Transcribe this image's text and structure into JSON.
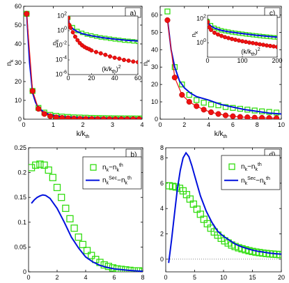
{
  "colors": {
    "green": "#33dd11",
    "blue": "#0010dd",
    "red": "#ee1111",
    "dots": "#888888"
  },
  "chart_data": [
    {
      "id": "a",
      "panel_label": "a)",
      "type": "line",
      "xlabel": "k/k_th",
      "ylabel": "n_k",
      "xlim": [
        0,
        4
      ],
      "ylim": [
        0,
        60
      ],
      "xticks": [
        "0",
        "1",
        "2",
        "3",
        "4"
      ],
      "yticks": [
        "0",
        "10",
        "20",
        "30",
        "40",
        "50",
        "60"
      ],
      "series": [
        {
          "marker": "square",
          "color": "green",
          "x": [
            0.1,
            0.3,
            0.5,
            0.7,
            0.9,
            1.1,
            1.3,
            1.5,
            1.7,
            1.9,
            2.1,
            2.3,
            2.5,
            2.7,
            2.9,
            3.1,
            3.3,
            3.5,
            3.7,
            3.9
          ],
          "y": [
            56,
            15,
            6,
            3.5,
            2.3,
            1.8,
            1.4,
            1.2,
            1.0,
            0.9,
            0.8,
            0.7,
            0.65,
            0.6,
            0.55,
            0.5,
            0.47,
            0.44,
            0.42,
            0.4
          ]
        },
        {
          "marker": "line",
          "color": "blue",
          "x": [
            0.1,
            0.2,
            0.3,
            0.4,
            0.5,
            0.7,
            0.9,
            1.2,
            1.5,
            2,
            2.5,
            3,
            3.5,
            4
          ],
          "y": [
            56,
            30,
            14,
            9,
            6,
            3.5,
            2.3,
            1.5,
            1.1,
            0.8,
            0.6,
            0.5,
            0.45,
            0.4
          ]
        },
        {
          "marker": "dot",
          "color": "red",
          "x": [
            0.1,
            0.3,
            0.5,
            0.7,
            0.9,
            1.1,
            1.3,
            1.5,
            1.7,
            1.9,
            2.1,
            2.3,
            2.5,
            2.7,
            2.9,
            3.1,
            3.3,
            3.5,
            3.7,
            3.9
          ],
          "y": [
            56,
            15,
            5.5,
            2.8,
            1.6,
            1.0,
            0.7,
            0.5,
            0.35,
            0.25,
            0.18,
            0.13,
            0.1,
            0.08,
            0.06,
            0.05,
            0.04,
            0.03,
            0.02,
            0.02
          ]
        }
      ],
      "inset": {
        "xlabel": "(k/k_th)^2",
        "ylabel": "n_k",
        "xlim": [
          0,
          60
        ],
        "log10_ylim": [
          -6,
          2
        ],
        "xticks": [
          "0",
          "20",
          "40",
          "60"
        ],
        "yticks": [
          "10^2",
          "10^0",
          "10^-2",
          "10^-4",
          "10^-6"
        ],
        "series": [
          {
            "marker": "square",
            "color": "green",
            "x": [
              0.01,
              4,
              8,
              12,
              16,
              20,
              24,
              28,
              32,
              36,
              40,
              44,
              48,
              52,
              56,
              60
            ],
            "y": [
              56,
              3,
              0.9,
              0.5,
              0.3,
              0.22,
              0.16,
              0.12,
              0.1,
              0.08,
              0.065,
              0.055,
              0.045,
              0.04,
              0.035,
              0.03
            ]
          },
          {
            "marker": "line",
            "color": "blue",
            "x": [
              0.01,
              1,
              2,
              4,
              8,
              12,
              16,
              20,
              30,
              40,
              50,
              60
            ],
            "y": [
              56,
              8,
              4,
              1.8,
              0.7,
              0.4,
              0.27,
              0.2,
              0.11,
              0.07,
              0.05,
              0.04
            ]
          },
          {
            "marker": "dot",
            "color": "red",
            "x": [
              0.01,
              1,
              2,
              4,
              6,
              8,
              10,
              12,
              14,
              16,
              18,
              20,
              24,
              28,
              32,
              36,
              40,
              44,
              48,
              52,
              56,
              60
            ],
            "y": [
              56,
              6,
              2.5,
              0.6,
              0.15,
              0.05,
              0.02,
              0.01,
              0.006,
              0.004,
              0.003,
              0.002,
              0.0012,
              0.0008,
              0.0005,
              0.0003,
              0.0002,
              0.00015,
              0.0001,
              8e-05,
              6e-05,
              5e-05
            ]
          }
        ]
      }
    },
    {
      "id": "c",
      "panel_label": "c)",
      "type": "line",
      "xlabel": "k/k_th",
      "ylabel": "n_k",
      "xlim": [
        0,
        10
      ],
      "ylim": [
        0,
        65
      ],
      "xticks": [
        "0",
        "2",
        "4",
        "6",
        "8",
        "10"
      ],
      "yticks": [
        "0",
        "10",
        "20",
        "30",
        "40",
        "50",
        "60"
      ],
      "series": [
        {
          "marker": "square",
          "color": "green",
          "x": [
            0.6,
            1.2,
            1.8,
            2.4,
            3.0,
            3.6,
            4.2,
            4.8,
            5.4,
            6.0,
            6.6,
            7.2,
            7.8,
            8.4,
            9.0,
            9.6
          ],
          "y": [
            62,
            30,
            20,
            14,
            11,
            9.5,
            8.5,
            8,
            7,
            6.5,
            6,
            5.5,
            5,
            4.5,
            4.2,
            3.8
          ]
        },
        {
          "marker": "line",
          "color": "blue",
          "x": [
            0.6,
            0.9,
            1.2,
            1.6,
            2,
            2.5,
            3,
            3.5,
            4,
            5,
            6,
            7,
            8,
            9,
            10
          ],
          "y": [
            58,
            40,
            30,
            22,
            18,
            15,
            13,
            12,
            11,
            8.5,
            7,
            5.5,
            4.5,
            3.5,
            3
          ]
        },
        {
          "marker": "dot",
          "color": "red",
          "x": [
            0.6,
            1.2,
            1.8,
            2.4,
            3.0,
            3.6,
            4.2,
            4.8,
            5.4,
            6.0,
            6.6,
            7.2,
            7.8,
            8.4,
            9.0,
            9.6
          ],
          "y": [
            57,
            24,
            14,
            10,
            7.5,
            5.5,
            4,
            3,
            2.2,
            1.7,
            1.3,
            1.1,
            0.9,
            0.8,
            0.7,
            0.6
          ]
        }
      ],
      "inset": {
        "xlabel": "(k/k_th)^2",
        "ylabel": "n_k",
        "xlim": [
          0,
          200
        ],
        "log10_ylim": [
          -1.2,
          2.3
        ],
        "xticks": [
          "0",
          "100",
          "200"
        ],
        "yticks": [
          "10^2",
          "10^0"
        ],
        "series": [
          {
            "marker": "square",
            "color": "green",
            "x": [
              0.36,
              10,
              20,
              30,
              40,
              50,
              60,
              70,
              80,
              90,
              100,
              110,
              120,
              130,
              140,
              150,
              160,
              170,
              180,
              190,
              200
            ],
            "y": [
              62,
              30,
              18,
              14,
              11,
              9.5,
              8.5,
              7.5,
              6.8,
              6.2,
              5.7,
              5.2,
              4.8,
              4.4,
              4.1,
              3.8,
              3.5,
              3.3,
              3.1,
              2.9,
              2.8
            ]
          },
          {
            "marker": "line",
            "color": "blue",
            "x": [
              0.36,
              5,
              10,
              20,
              40,
              60,
              80,
              100,
              120,
              140,
              160,
              180,
              200
            ],
            "y": [
              58,
              35,
              25,
              17,
              11,
              8.5,
              7,
              6,
              5,
              4.3,
              3.8,
              3.3,
              3
            ]
          },
          {
            "marker": "dot",
            "color": "red",
            "x": [
              0.36,
              5,
              10,
              20,
              30,
              40,
              50,
              60,
              70,
              80,
              90,
              100,
              110,
              120,
              130,
              140,
              150,
              160,
              170,
              180,
              190,
              200
            ],
            "y": [
              57,
              20,
              12,
              7,
              5,
              3.8,
              3,
              2.5,
              2.1,
              1.8,
              1.55,
              1.35,
              1.2,
              1.05,
              0.95,
              0.85,
              0.75,
              0.68,
              0.6,
              0.55,
              0.5,
              0.45
            ]
          }
        ]
      }
    },
    {
      "id": "b",
      "panel_label": "b)",
      "type": "line",
      "xlabel": "k/k_th",
      "ylabel": "",
      "xlim": [
        0,
        8
      ],
      "ylim": [
        0,
        0.25
      ],
      "xticks": [
        "0",
        "2",
        "4",
        "6",
        "8"
      ],
      "yticks": [
        "0",
        "0.05",
        "0.1",
        "0.15",
        "0.2",
        "0.25"
      ],
      "legend": {
        "placement": "top-right",
        "entries": [
          "n_k−n_k^th",
          "n_k^Sec−n_k^th"
        ]
      },
      "series": [
        {
          "name": "n_k−n_k^th",
          "marker": "square",
          "color": "green",
          "x": [
            0.2,
            0.5,
            0.8,
            1.1,
            1.4,
            1.7,
            2.0,
            2.3,
            2.6,
            2.9,
            3.2,
            3.5,
            3.8,
            4.1,
            4.4,
            4.7,
            5.0,
            5.3,
            5.6,
            5.9,
            6.2,
            6.5,
            6.8,
            7.1,
            7.4,
            7.7,
            8.0
          ],
          "y": [
            0.21,
            0.215,
            0.217,
            0.215,
            0.205,
            0.19,
            0.17,
            0.15,
            0.128,
            0.107,
            0.088,
            0.07,
            0.055,
            0.043,
            0.033,
            0.025,
            0.019,
            0.014,
            0.011,
            0.008,
            0.006,
            0.005,
            0.004,
            0.003,
            0.002,
            0.002,
            0.001
          ]
        },
        {
          "name": "n_k^Sec−n_k^th",
          "marker": "line",
          "color": "blue",
          "x": [
            0.2,
            0.4,
            0.6,
            0.8,
            1.0,
            1.2,
            1.5,
            2.0,
            2.5,
            3.0,
            3.5,
            4.0,
            4.5,
            5.0,
            5.5,
            6.0,
            7.0,
            8.0
          ],
          "y": [
            0.138,
            0.145,
            0.15,
            0.153,
            0.155,
            0.154,
            0.148,
            0.128,
            0.1,
            0.07,
            0.048,
            0.03,
            0.02,
            0.013,
            0.009,
            0.006,
            0.003,
            0.001
          ]
        }
      ]
    },
    {
      "id": "d",
      "panel_label": "d)",
      "type": "line",
      "xlabel": "k/k_th",
      "ylabel": "",
      "xlim": [
        0,
        20
      ],
      "ylim": [
        -1,
        8.8
      ],
      "xticks": [
        "0",
        "5",
        "10",
        "15",
        "20"
      ],
      "yticks": [
        "0",
        "2",
        "4",
        "6",
        "8"
      ],
      "yticks_values": [
        0,
        2,
        4,
        6,
        8
      ],
      "ytop_label": "8",
      "ytop_label_value": 8.8,
      "legend": {
        "placement": "top-right",
        "entries": [
          "n_k−n_k^th",
          "n_k^Sec−n_k^th"
        ]
      },
      "series": [
        {
          "name": "n_k−n_k^th",
          "marker": "square",
          "color": "green",
          "x": [
            0.6,
            1.2,
            1.8,
            2.4,
            3.0,
            3.6,
            4.2,
            4.8,
            5.4,
            6.0,
            6.6,
            7.2,
            7.8,
            8.4,
            9.0,
            9.6,
            10.2,
            10.8,
            11.4,
            12.0,
            12.6,
            13.2,
            13.8,
            14.4,
            15.0,
            15.6,
            16.2,
            16.8,
            17.4,
            18.0,
            18.6,
            19.2,
            19.8
          ],
          "y": [
            5.8,
            5.75,
            5.7,
            5.6,
            5.4,
            5.1,
            4.75,
            4.35,
            3.95,
            3.55,
            3.15,
            2.8,
            2.45,
            2.15,
            1.9,
            1.65,
            1.45,
            1.28,
            1.12,
            1.0,
            0.9,
            0.82,
            0.74,
            0.67,
            0.61,
            0.56,
            0.52,
            0.48,
            0.45,
            0.42,
            0.4,
            0.38,
            0.36
          ]
        },
        {
          "name": "n_k^Sec−n_k^th",
          "marker": "line",
          "color": "blue",
          "x": [
            0.5,
            1,
            1.5,
            2,
            2.5,
            3,
            3.5,
            4,
            4.5,
            5,
            6,
            7,
            8,
            9,
            10,
            11,
            12,
            13,
            14,
            15,
            16,
            17,
            18,
            19,
            20
          ],
          "y": [
            -0.3,
            1.5,
            3.5,
            5.5,
            7,
            8,
            8.4,
            8.1,
            7.4,
            6.6,
            5,
            3.8,
            2.9,
            2.2,
            1.8,
            1.5,
            1.2,
            1.0,
            0.85,
            0.72,
            0.62,
            0.55,
            0.48,
            0.43,
            0.4
          ]
        },
        {
          "name": "",
          "marker": "dotted",
          "color": "dots",
          "x": [
            0,
            20
          ],
          "y": [
            0,
            0
          ]
        }
      ]
    }
  ]
}
